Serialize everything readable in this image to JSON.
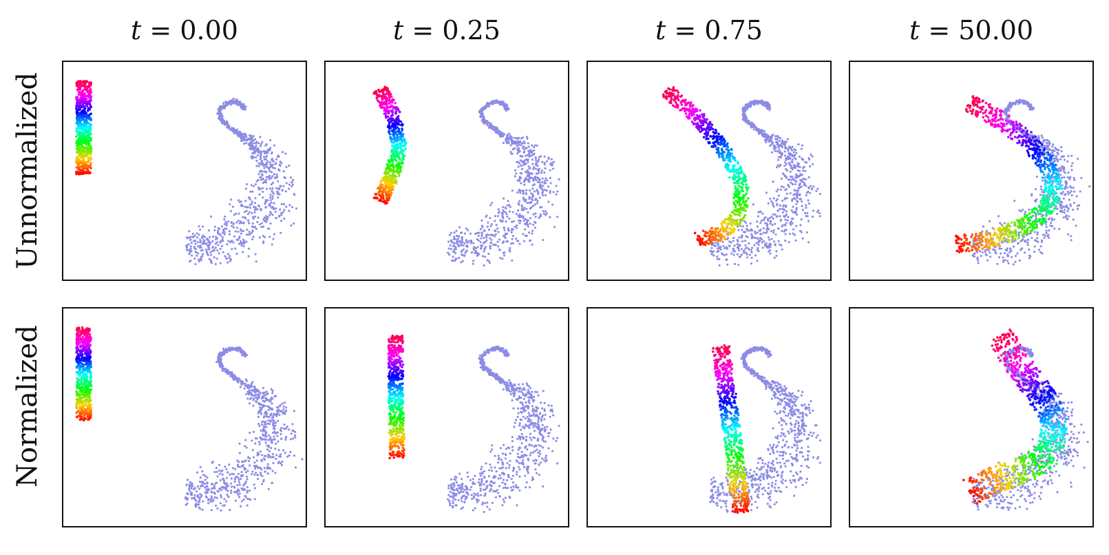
{
  "figure": {
    "columns": [
      {
        "label": "t = 0.00",
        "var": "t",
        "eq": " = 0.00",
        "t": 0.0
      },
      {
        "label": "t = 0.25",
        "var": "t",
        "eq": " = 0.25",
        "t": 0.25
      },
      {
        "label": "t = 0.75",
        "var": "t",
        "eq": " = 0.75",
        "t": 0.75
      },
      {
        "label": "t = 50.00",
        "var": "t",
        "eq": " = 50.00",
        "t": 50.0
      }
    ],
    "rows": [
      {
        "label": "Unnormalized"
      },
      {
        "label": "Normalized"
      }
    ],
    "colors": {
      "target_distribution": "#8c8ce6",
      "frame": "#111111",
      "source_colormap": [
        "#ff0040",
        "#ff00ff",
        "#0000ff",
        "#00ffff",
        "#00ff00",
        "#ffd000",
        "#ff0000"
      ]
    }
  }
}
